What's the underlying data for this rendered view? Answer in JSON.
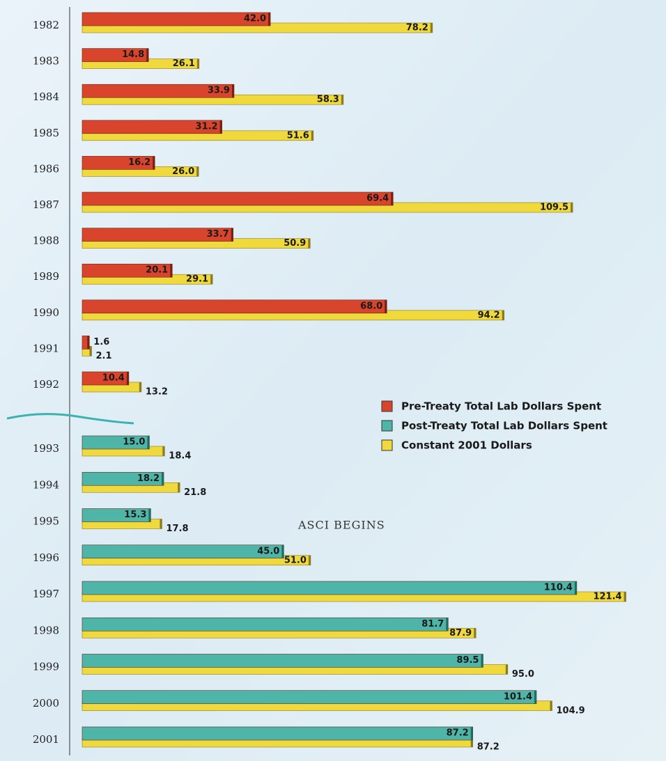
{
  "chart_data": {
    "type": "bar",
    "categories": [
      "1982",
      "1983",
      "1984",
      "1985",
      "1986",
      "1987",
      "1988",
      "1989",
      "1990",
      "1991",
      "1992",
      "1993",
      "1994",
      "1995",
      "1996",
      "1997",
      "1998",
      "1999",
      "2000",
      "2001"
    ],
    "series": [
      {
        "name": "Pre-Treaty Total Lab Dollars Spent",
        "color": "#d8442c",
        "values": [
          42.0,
          14.8,
          33.9,
          31.2,
          16.2,
          69.4,
          33.7,
          20.1,
          68.0,
          1.6,
          10.4,
          null,
          null,
          null,
          null,
          null,
          null,
          null,
          null,
          null
        ],
        "value_labels": [
          "42.0",
          "14.8",
          "33.9",
          "31.2",
          "16.2",
          "69.4",
          "33.7",
          "20.1",
          "68.0",
          "1.6",
          "10.4",
          null,
          null,
          null,
          null,
          null,
          null,
          null,
          null,
          null
        ]
      },
      {
        "name": "Post-Treaty Total Lab Dollars Spent",
        "color": "#4fb5a8",
        "values": [
          null,
          null,
          null,
          null,
          null,
          null,
          null,
          null,
          null,
          null,
          null,
          15.0,
          18.2,
          15.3,
          45.0,
          110.4,
          81.7,
          89.5,
          101.4,
          87.2
        ],
        "value_labels": [
          null,
          null,
          null,
          null,
          null,
          null,
          null,
          null,
          null,
          null,
          null,
          "15.0",
          "18.2",
          "15.3",
          "45.0",
          "110.4",
          "81.7",
          "89.5",
          "101.4",
          "87.2"
        ]
      },
      {
        "name": "Constant 2001 Dollars",
        "color": "#efd93c",
        "values": [
          78.2,
          26.1,
          58.3,
          51.6,
          26.0,
          109.5,
          50.9,
          29.1,
          94.2,
          2.1,
          13.2,
          18.4,
          21.8,
          17.8,
          51.0,
          121.4,
          87.9,
          95.0,
          104.9,
          87.2
        ],
        "value_labels": [
          "78.2",
          "26.1",
          "58.3",
          "51.6",
          "26.0",
          "109.5",
          "50.9",
          "29.1",
          "94.2",
          "2.1",
          "13.2",
          "18.4",
          "21.8",
          "17.8",
          "51.0",
          "121.4",
          "87.9",
          "95.0",
          "104.9",
          "87.2"
        ]
      }
    ],
    "annotations": [
      "ASCI BEGINS"
    ],
    "legend": "right"
  }
}
